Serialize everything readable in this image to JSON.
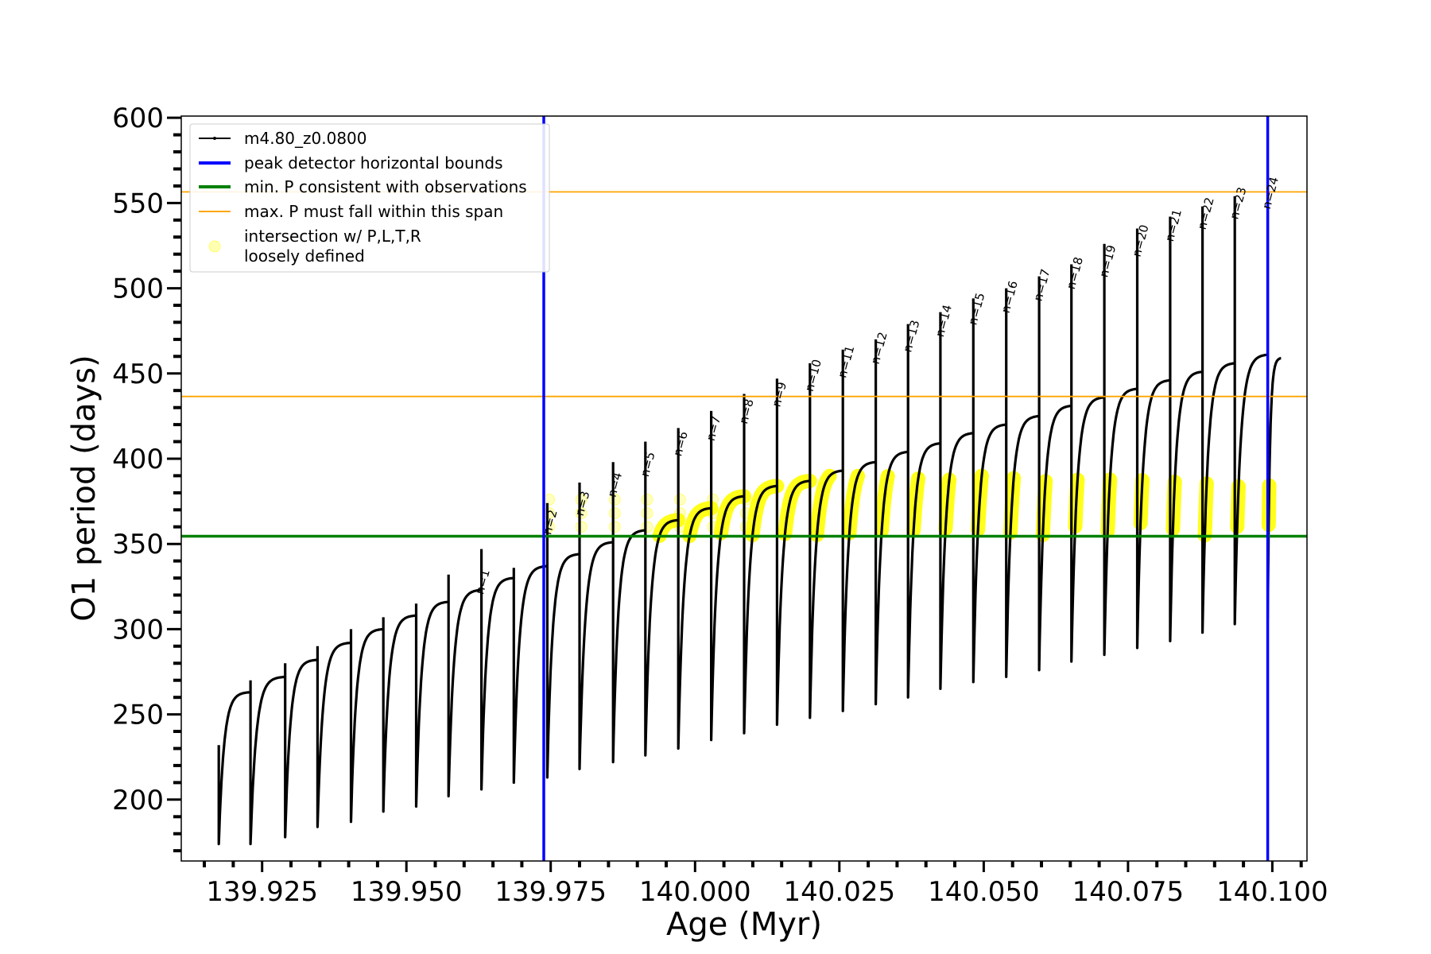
{
  "chart_data": {
    "type": "line",
    "xlabel": "Age (Myr)",
    "ylabel": "O1 period (days)",
    "xlim": [
      139.911,
      140.106
    ],
    "ylim": [
      164,
      601
    ],
    "xticks": [
      139.925,
      139.95,
      139.975,
      140.0,
      140.025,
      140.05,
      140.075,
      140.1
    ],
    "xtick_labels": [
      "139.925",
      "139.950",
      "139.975",
      "140.000",
      "140.025",
      "140.050",
      "140.075",
      "140.100"
    ],
    "yticks": [
      200,
      250,
      300,
      350,
      400,
      450,
      500,
      550,
      600
    ],
    "ytick_labels": [
      "200",
      "250",
      "300",
      "350",
      "400",
      "450",
      "500",
      "550",
      "600"
    ],
    "grid": false,
    "legend_position": "upper-left",
    "legend": [
      {
        "label": "m4.80_z0.0800",
        "color": "#000000"
      },
      {
        "label": "peak detector horizontal bounds",
        "color": "#0000ff"
      },
      {
        "label": "min. P consistent with observations",
        "color": "#008000"
      },
      {
        "label": "max. P must fall within this span",
        "color": "#ffa500"
      },
      {
        "label": "intersection w/ P,L,T,R",
        "label2": "loosely defined",
        "color": "#ffff00"
      }
    ],
    "vlines": [
      {
        "x": 139.9738,
        "color": "#0000ff"
      },
      {
        "x": 140.0992,
        "color": "#0000ff"
      }
    ],
    "hlines": [
      {
        "y": 354.5,
        "color": "#008000"
      },
      {
        "y": 436.5,
        "color": "#ffa500"
      },
      {
        "y": 556.5,
        "color": "#ffa500"
      }
    ],
    "series": [
      {
        "name": "m4.80_z0.0800",
        "cycles": [
          {
            "start": 139.9175,
            "end": 139.923,
            "min": 174,
            "max": 263,
            "spike": 232
          },
          {
            "start": 139.923,
            "end": 139.929,
            "min": 174,
            "max": 272,
            "spike": 270
          },
          {
            "start": 139.929,
            "end": 139.9346,
            "min": 178,
            "max": 282,
            "spike": 280
          },
          {
            "start": 139.9346,
            "end": 139.9404,
            "min": 184,
            "max": 292,
            "spike": 290
          },
          {
            "start": 139.9404,
            "end": 139.946,
            "min": 187,
            "max": 300,
            "spike": 300
          },
          {
            "start": 139.946,
            "end": 139.9517,
            "min": 193,
            "max": 308,
            "spike": 307
          },
          {
            "start": 139.9517,
            "end": 139.9573,
            "min": 196,
            "max": 316,
            "spike": 315
          },
          {
            "start": 139.9573,
            "end": 139.963,
            "min": 202,
            "max": 323,
            "spike": 332
          },
          {
            "start": 139.963,
            "end": 139.9686,
            "min": 206,
            "max": 330,
            "spike": 347
          },
          {
            "start": 139.9686,
            "end": 139.9744,
            "min": 210,
            "max": 337,
            "spike": 336
          },
          {
            "start": 139.9744,
            "end": 139.98,
            "min": 213,
            "max": 344,
            "spike": 374
          },
          {
            "start": 139.98,
            "end": 139.9858,
            "min": 218,
            "max": 351,
            "spike": 386
          },
          {
            "start": 139.9858,
            "end": 139.9914,
            "min": 222,
            "max": 358,
            "spike": 398
          },
          {
            "start": 139.9914,
            "end": 139.9971,
            "min": 226,
            "max": 364,
            "spike": 410
          },
          {
            "start": 139.9971,
            "end": 140.0028,
            "min": 230,
            "max": 371,
            "spike": 418
          },
          {
            "start": 140.0028,
            "end": 140.0085,
            "min": 235,
            "max": 378,
            "spike": 428
          },
          {
            "start": 140.0085,
            "end": 140.0142,
            "min": 239,
            "max": 384,
            "spike": 438
          },
          {
            "start": 140.0142,
            "end": 140.0199,
            "min": 244,
            "max": 387,
            "spike": 447
          },
          {
            "start": 140.0199,
            "end": 140.0256,
            "min": 248,
            "max": 393,
            "spike": 456
          },
          {
            "start": 140.0256,
            "end": 140.0313,
            "min": 252,
            "max": 398,
            "spike": 464
          },
          {
            "start": 140.0313,
            "end": 140.0369,
            "min": 256,
            "max": 404,
            "spike": 470
          },
          {
            "start": 140.0369,
            "end": 140.0425,
            "min": 260,
            "max": 409,
            "spike": 479
          },
          {
            "start": 140.0425,
            "end": 140.0482,
            "min": 265,
            "max": 415,
            "spike": 486
          },
          {
            "start": 140.0482,
            "end": 140.0539,
            "min": 269,
            "max": 420,
            "spike": 494
          },
          {
            "start": 140.0539,
            "end": 140.0596,
            "min": 272,
            "max": 425,
            "spike": 500
          },
          {
            "start": 140.0596,
            "end": 140.0652,
            "min": 276,
            "max": 431,
            "spike": 507
          },
          {
            "start": 140.0652,
            "end": 140.0709,
            "min": 281,
            "max": 436,
            "spike": 514
          },
          {
            "start": 140.0709,
            "end": 140.0766,
            "min": 285,
            "max": 441,
            "spike": 526
          },
          {
            "start": 140.0766,
            "end": 140.0823,
            "min": 289,
            "max": 446,
            "spike": 535
          },
          {
            "start": 140.0823,
            "end": 140.0879,
            "min": 293,
            "max": 451,
            "spike": 542
          },
          {
            "start": 140.0879,
            "end": 140.0935,
            "min": 298,
            "max": 456,
            "spike": 548
          },
          {
            "start": 140.0935,
            "end": 140.0992,
            "min": 303,
            "max": 461,
            "spike": 554
          },
          {
            "start": 140.0992,
            "end": 140.1015,
            "min": 306,
            "max": 459,
            "spike": 554
          }
        ]
      }
    ],
    "annotations": [
      {
        "text": "n=1",
        "x": 139.9633,
        "y": 320
      },
      {
        "text": "n=2",
        "x": 139.975,
        "y": 355
      },
      {
        "text": "n=3",
        "x": 139.9806,
        "y": 366
      },
      {
        "text": "n=4",
        "x": 139.9862,
        "y": 377
      },
      {
        "text": "n=5",
        "x": 139.9919,
        "y": 389
      },
      {
        "text": "n=6",
        "x": 139.9976,
        "y": 401
      },
      {
        "text": "n=7",
        "x": 140.0033,
        "y": 410
      },
      {
        "text": "n=8",
        "x": 140.009,
        "y": 420
      },
      {
        "text": "n=9",
        "x": 140.0147,
        "y": 430
      },
      {
        "text": "n=10",
        "x": 140.0204,
        "y": 439
      },
      {
        "text": "n=11",
        "x": 140.0261,
        "y": 447
      },
      {
        "text": "n=12",
        "x": 140.0318,
        "y": 455
      },
      {
        "text": "n=13",
        "x": 140.0374,
        "y": 462
      },
      {
        "text": "n=14",
        "x": 140.043,
        "y": 471
      },
      {
        "text": "n=15",
        "x": 140.0487,
        "y": 478
      },
      {
        "text": "n=16",
        "x": 140.0544,
        "y": 485
      },
      {
        "text": "n=17",
        "x": 140.06,
        "y": 492
      },
      {
        "text": "n=18",
        "x": 140.0657,
        "y": 499
      },
      {
        "text": "n=19",
        "x": 140.0714,
        "y": 506
      },
      {
        "text": "n=20",
        "x": 140.0771,
        "y": 518
      },
      {
        "text": "n=21",
        "x": 140.0828,
        "y": 527
      },
      {
        "text": "n=22",
        "x": 140.0884,
        "y": 534
      },
      {
        "text": "n=23",
        "x": 140.094,
        "y": 540
      },
      {
        "text": "n=24",
        "x": 140.0996,
        "y": 546
      }
    ]
  }
}
